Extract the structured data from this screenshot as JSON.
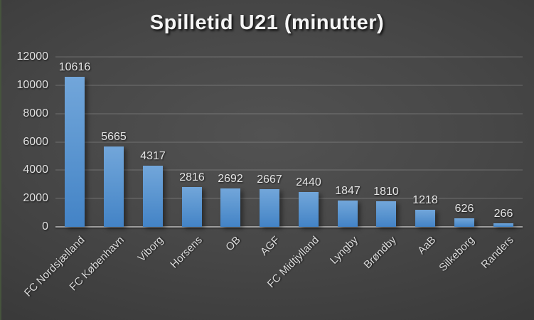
{
  "chart_data": {
    "type": "bar",
    "title": "Spilletid U21 (minutter)",
    "categories": [
      "FC Nordsjælland",
      "FC København",
      "Viborg",
      "Horsens",
      "OB",
      "AGF",
      "FC Midtjylland",
      "Lyngby",
      "Brøndby",
      "AaB",
      "Silkeborg",
      "Randers"
    ],
    "values": [
      10616,
      5665,
      4317,
      2816,
      2692,
      2667,
      2440,
      1847,
      1810,
      1218,
      626,
      266
    ],
    "value_labels": [
      "10616",
      "5665",
      "4317",
      "2816",
      "2692",
      "2667",
      "2440",
      "1847",
      "1810",
      "1218",
      "626",
      "266"
    ],
    "xlabel": "",
    "ylabel": "",
    "ylim": [
      0,
      12000
    ],
    "yticks": [
      0,
      2000,
      4000,
      6000,
      8000,
      10000,
      12000
    ],
    "grid": true,
    "legend": false,
    "category_label_rotation_deg": -45,
    "colors": {
      "bar_top": "#72a6da",
      "bar_bottom": "#4383c6",
      "background_center": "#4d4d4d",
      "background_edge": "#242424",
      "gridline": "rgba(255,255,255,0.11)",
      "axis_line": "#9d9d9d",
      "label_text": "#e2e2e2",
      "title_text": "#f5f5f5",
      "left_edge_accent": "#46543d"
    }
  }
}
